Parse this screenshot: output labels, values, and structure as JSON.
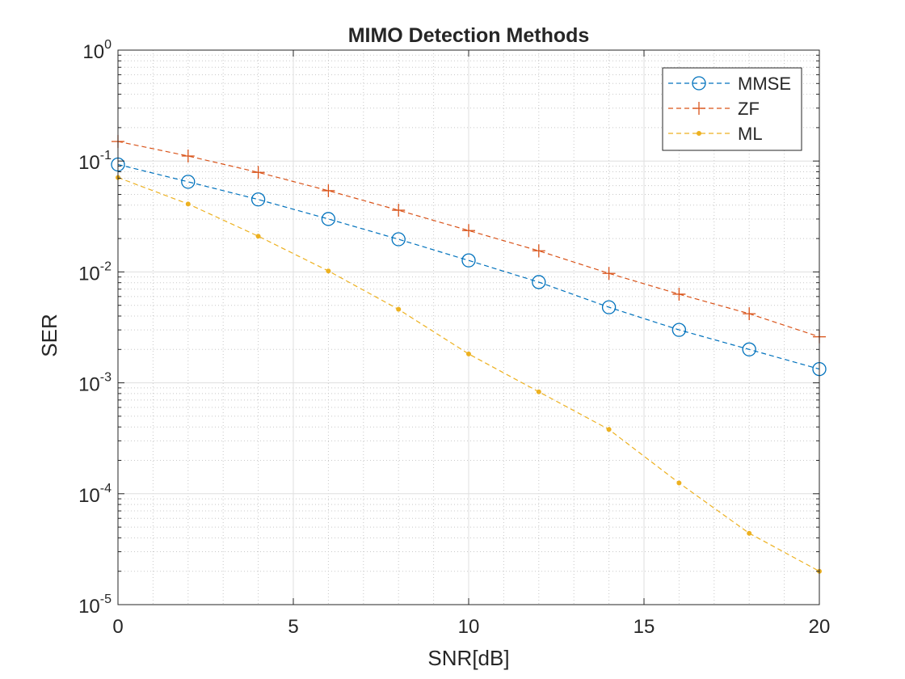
{
  "chart_data": {
    "type": "line",
    "title": "MIMO Detection Methods",
    "xlabel": "SNR[dB]",
    "ylabel": "SER",
    "xlim": [
      0,
      20
    ],
    "ylim": [
      1e-05,
      1
    ],
    "y_scale": "log",
    "grid": true,
    "minor_grid": true,
    "legend_position": "top-right",
    "x_ticks": [
      {
        "value": 0,
        "label": "0"
      },
      {
        "value": 5,
        "label": "5"
      },
      {
        "value": 10,
        "label": "10"
      },
      {
        "value": 15,
        "label": "15"
      },
      {
        "value": 20,
        "label": "20"
      }
    ],
    "y_ticks": [
      {
        "value": 1,
        "base": "10",
        "exp": "0"
      },
      {
        "value": 0.1,
        "base": "10",
        "exp": "-1"
      },
      {
        "value": 0.01,
        "base": "10",
        "exp": "-2"
      },
      {
        "value": 0.001,
        "base": "10",
        "exp": "-3"
      },
      {
        "value": 0.0001,
        "base": "10",
        "exp": "-4"
      },
      {
        "value": 1e-05,
        "base": "10",
        "exp": "-5"
      }
    ],
    "x": [
      0,
      2,
      4,
      6,
      8,
      10,
      12,
      14,
      16,
      18,
      20
    ],
    "series": [
      {
        "name": "MMSE",
        "color": "#0072BD",
        "marker": "circle",
        "line_style": "dashed",
        "values": [
          0.093,
          0.065,
          0.045,
          0.03,
          0.0197,
          0.0127,
          0.0081,
          0.0048,
          0.003,
          0.002,
          0.00133
        ]
      },
      {
        "name": "ZF",
        "color": "#D95319",
        "marker": "plus",
        "line_style": "dashed",
        "values": [
          0.15,
          0.111,
          0.079,
          0.054,
          0.036,
          0.0236,
          0.0155,
          0.0097,
          0.0063,
          0.0042,
          0.0026
        ]
      },
      {
        "name": "ML",
        "color": "#EDB120",
        "marker": "dot",
        "line_style": "dashed",
        "values": [
          0.071,
          0.041,
          0.021,
          0.0102,
          0.0046,
          0.00182,
          0.00083,
          0.00038,
          0.000125,
          4.4e-05,
          2e-05
        ]
      }
    ]
  }
}
